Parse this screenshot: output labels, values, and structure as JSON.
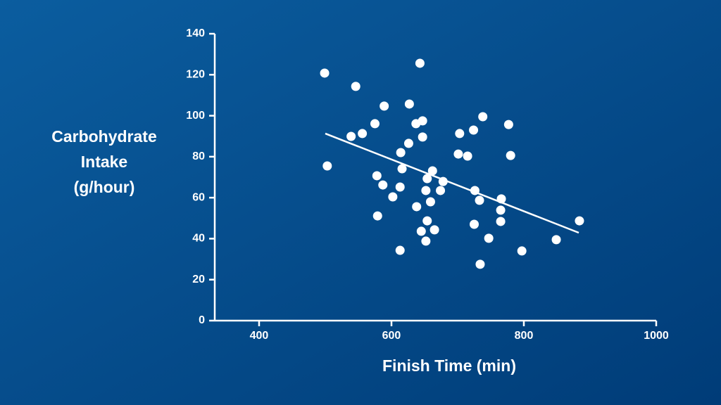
{
  "chart_data": {
    "type": "scatter",
    "xlabel": "Finish Time (min)",
    "ylabel": "Carbohydrate Intake (g/hour)",
    "color": "#ffffff",
    "xlim": [
      333,
      1000
    ],
    "ylim": [
      0,
      140
    ],
    "xticks": [
      400,
      600,
      800,
      1000
    ],
    "yticks": [
      0,
      20,
      40,
      60,
      80,
      100,
      120,
      140
    ],
    "series": [
      {
        "color": "#ffffff",
        "x": [
          499,
          503,
          546,
          539,
          556,
          575,
          589,
          578,
          587,
          579,
          602,
          614,
          616,
          613,
          613,
          627,
          626,
          643,
          637,
          647,
          647,
          638,
          645,
          652,
          654,
          662,
          652,
          659,
          654,
          665,
          674,
          678,
          703,
          701,
          715,
          724,
          738,
          726,
          733,
          725,
          747,
          734,
          766,
          765,
          765,
          777,
          780,
          797,
          849,
          884
        ],
        "values": [
          120.8,
          75.5,
          114.3,
          89.9,
          91.3,
          96.1,
          104.7,
          70.7,
          66.2,
          51.1,
          60.4,
          82.0,
          74.1,
          65.2,
          34.3,
          105.7,
          86.5,
          125.6,
          96.1,
          97.5,
          89.6,
          55.6,
          43.6,
          38.8,
          69.3,
          73.1,
          63.5,
          58.0,
          48.7,
          44.3,
          63.5,
          67.9,
          91.3,
          81.3,
          80.3,
          93.0,
          99.5,
          63.5,
          58.7,
          47.0,
          40.2,
          27.5,
          59.4,
          53.9,
          48.4,
          95.7,
          80.6,
          34.0,
          39.5,
          48.7
        ]
      }
    ],
    "trendline": {
      "color": "#ffffff",
      "x": [
        500,
        883
      ],
      "values": [
        91.3,
        42.9
      ]
    }
  }
}
